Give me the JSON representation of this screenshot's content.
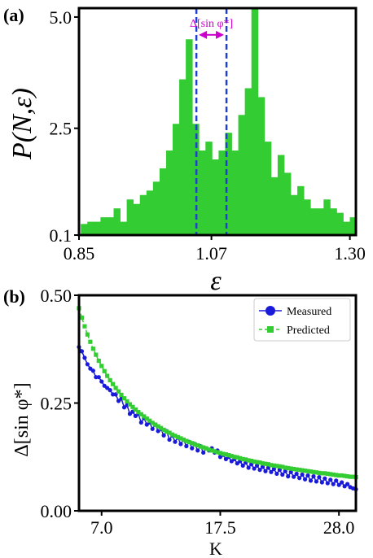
{
  "chart_data": [
    {
      "type": "bar",
      "panel_label": "(a)",
      "ylabel": "P(N,ε)",
      "xlabel": "ε",
      "xlim": [
        0.85,
        1.31
      ],
      "ylim": [
        0.1,
        5.2
      ],
      "xticks": [
        "0.85",
        "1.07",
        "1.30"
      ],
      "xtick_values": [
        0.85,
        1.07,
        1.3
      ],
      "yticks": [
        "0.1",
        "2.5",
        "5.0"
      ],
      "ytick_values": [
        0.1,
        2.5,
        5.0
      ],
      "bar_color": "#33cc33",
      "bin_start": 0.853,
      "bin_width": 0.0109,
      "values": [
        0.35,
        0.4,
        0.4,
        0.5,
        0.5,
        0.7,
        0.4,
        0.9,
        0.8,
        1.0,
        1.1,
        1.3,
        1.6,
        2.0,
        2.6,
        3.6,
        4.5,
        2.6,
        2.0,
        2.2,
        1.8,
        2.0,
        2.4,
        2.0,
        2.8,
        3.4,
        5.2,
        3.2,
        2.2,
        1.4,
        1.9,
        1.5,
        1.0,
        1.2,
        0.9,
        0.7,
        0.7,
        0.9,
        0.7,
        0.6,
        0.4,
        0.5,
        0.4,
        0.3,
        0.4,
        0.4
      ],
      "vlines": [
        1.045,
        1.095
      ],
      "vline_color": "#1f3fcf",
      "annotation": {
        "text": "Δ[sin φ*]",
        "color": "#cc00cc",
        "x_range": [
          1.045,
          1.095
        ],
        "y": 4.6
      }
    },
    {
      "type": "line",
      "panel_label": "(b)",
      "ylabel": "Δ[sin φ*]",
      "xlabel": "K",
      "xlim": [
        5.0,
        29.5
      ],
      "ylim": [
        0.0,
        0.5
      ],
      "xticks": [
        "7.0",
        "17.5",
        "28.0"
      ],
      "xtick_values": [
        7.0,
        17.5,
        28.0
      ],
      "yticks": [
        "0.00",
        "0.25",
        "0.50"
      ],
      "ytick_values": [
        0.0,
        0.25,
        0.5
      ],
      "legend_position": "top-right",
      "series": [
        {
          "name": "Measured",
          "color": "#1a1adb",
          "marker": "circle",
          "x": [
            5.0,
            5.25,
            5.5,
            5.75,
            6.0,
            6.25,
            6.5,
            6.75,
            7.0,
            7.25,
            7.5,
            7.75,
            8.0,
            8.25,
            8.5,
            8.75,
            9.0,
            9.25,
            9.5,
            9.75,
            10.0,
            10.25,
            10.5,
            10.75,
            11.0,
            11.25,
            11.5,
            11.75,
            12.0,
            12.25,
            12.5,
            12.75,
            13.0,
            13.25,
            13.5,
            13.75,
            14.0,
            14.25,
            14.5,
            14.75,
            15.0,
            15.25,
            15.5,
            15.75,
            16.0,
            16.25,
            16.5,
            16.75,
            17.0,
            17.25,
            17.5,
            17.75,
            18.0,
            18.25,
            18.5,
            18.75,
            19.0,
            19.25,
            19.5,
            19.75,
            20.0,
            20.25,
            20.5,
            20.75,
            21.0,
            21.25,
            21.5,
            21.75,
            22.0,
            22.25,
            22.5,
            22.75,
            23.0,
            23.25,
            23.5,
            23.75,
            24.0,
            24.25,
            24.5,
            24.75,
            25.0,
            25.25,
            25.5,
            25.75,
            26.0,
            26.25,
            26.5,
            26.75,
            27.0,
            27.25,
            27.5,
            27.75,
            28.0,
            28.25,
            28.5,
            28.75,
            29.0,
            29.25,
            29.5
          ],
          "y": [
            0.38,
            0.37,
            0.355,
            0.34,
            0.33,
            0.325,
            0.31,
            0.31,
            0.3,
            0.29,
            0.285,
            0.28,
            0.27,
            0.27,
            0.255,
            0.26,
            0.24,
            0.245,
            0.225,
            0.23,
            0.22,
            0.225,
            0.205,
            0.215,
            0.2,
            0.205,
            0.19,
            0.2,
            0.185,
            0.19,
            0.175,
            0.185,
            0.165,
            0.175,
            0.16,
            0.17,
            0.155,
            0.165,
            0.15,
            0.16,
            0.145,
            0.155,
            0.14,
            0.15,
            0.135,
            0.145,
            0.14,
            0.145,
            0.135,
            0.14,
            0.125,
            0.13,
            0.12,
            0.125,
            0.115,
            0.12,
            0.11,
            0.115,
            0.105,
            0.112,
            0.1,
            0.108,
            0.098,
            0.105,
            0.095,
            0.102,
            0.092,
            0.1,
            0.09,
            0.097,
            0.086,
            0.095,
            0.084,
            0.092,
            0.08,
            0.09,
            0.079,
            0.086,
            0.076,
            0.084,
            0.073,
            0.082,
            0.07,
            0.08,
            0.068,
            0.078,
            0.066,
            0.075,
            0.064,
            0.072,
            0.062,
            0.07,
            0.06,
            0.066,
            0.057,
            0.062,
            0.055,
            0.052,
            0.05
          ]
        },
        {
          "name": "Predicted",
          "color": "#33cc33",
          "marker": "square",
          "x": [
            5.0,
            5.25,
            5.5,
            5.75,
            6.0,
            6.25,
            6.5,
            6.75,
            7.0,
            7.25,
            7.5,
            7.75,
            8.0,
            8.25,
            8.5,
            8.75,
            9.0,
            9.25,
            9.5,
            9.75,
            10.0,
            10.25,
            10.5,
            10.75,
            11.0,
            11.25,
            11.5,
            11.75,
            12.0,
            12.25,
            12.5,
            12.75,
            13.0,
            13.25,
            13.5,
            13.75,
            14.0,
            14.25,
            14.5,
            14.75,
            15.0,
            15.25,
            15.5,
            15.75,
            16.0,
            16.25,
            16.5,
            16.75,
            17.0,
            17.25,
            17.5,
            17.75,
            18.0,
            18.25,
            18.5,
            18.75,
            19.0,
            19.25,
            19.5,
            19.75,
            20.0,
            20.25,
            20.5,
            20.75,
            21.0,
            21.25,
            21.5,
            21.75,
            22.0,
            22.25,
            22.5,
            22.75,
            23.0,
            23.25,
            23.5,
            23.75,
            24.0,
            24.25,
            24.5,
            24.75,
            25.0,
            25.25,
            25.5,
            25.75,
            26.0,
            26.25,
            26.5,
            26.75,
            27.0,
            27.25,
            27.5,
            27.75,
            28.0,
            28.25,
            28.5,
            28.75,
            29.0,
            29.25,
            29.5
          ],
          "y": [
            0.47,
            0.448,
            0.428,
            0.409,
            0.392,
            0.376,
            0.362,
            0.348,
            0.336,
            0.324,
            0.313,
            0.303,
            0.294,
            0.285,
            0.277,
            0.269,
            0.261,
            0.254,
            0.247,
            0.241,
            0.235,
            0.229,
            0.224,
            0.219,
            0.214,
            0.209,
            0.204,
            0.2,
            0.196,
            0.192,
            0.188,
            0.184,
            0.181,
            0.177,
            0.174,
            0.171,
            0.168,
            0.165,
            0.162,
            0.159,
            0.157,
            0.154,
            0.152,
            0.149,
            0.147,
            0.145,
            0.142,
            0.14,
            0.138,
            0.136,
            0.134,
            0.132,
            0.131,
            0.129,
            0.127,
            0.125,
            0.124,
            0.122,
            0.12,
            0.119,
            0.117,
            0.116,
            0.114,
            0.113,
            0.112,
            0.11,
            0.109,
            0.108,
            0.106,
            0.105,
            0.104,
            0.103,
            0.102,
            0.1,
            0.099,
            0.098,
            0.097,
            0.096,
            0.095,
            0.094,
            0.093,
            0.092,
            0.091,
            0.09,
            0.089,
            0.088,
            0.087,
            0.087,
            0.086,
            0.085,
            0.084,
            0.083,
            0.082,
            0.082,
            0.081,
            0.08,
            0.079,
            0.079,
            0.078
          ]
        }
      ]
    }
  ]
}
